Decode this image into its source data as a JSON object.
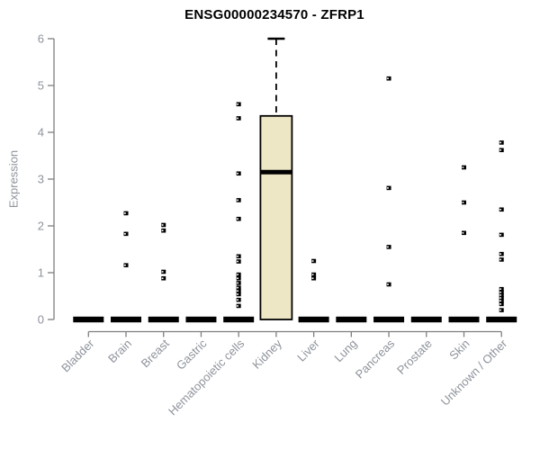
{
  "chart_data": {
    "type": "boxplot",
    "title": "ENSG00000234570 - ZFRP1",
    "ylabel": "Expression",
    "xlabel": "",
    "ylim": [
      0,
      6
    ],
    "yticks": [
      0,
      1,
      2,
      3,
      4,
      5,
      6
    ],
    "grid": false,
    "legend": "none",
    "categories": [
      "Bladder",
      "Brain",
      "Breast",
      "Gastric",
      "Hematopoietic cells",
      "Kidney",
      "Liver",
      "Lung",
      "Pancreas",
      "Prostate",
      "Skin",
      "Unknown / Other"
    ],
    "boxes": [
      {
        "category": "Bladder",
        "q1": 0,
        "median": 0,
        "q3": 0,
        "whisker_low": 0,
        "whisker_high": 0,
        "outliers": []
      },
      {
        "category": "Brain",
        "q1": 0,
        "median": 0,
        "q3": 0,
        "whisker_low": 0,
        "whisker_high": 0,
        "outliers": [
          2.27,
          1.83,
          1.16
        ]
      },
      {
        "category": "Breast",
        "q1": 0,
        "median": 0,
        "q3": 0,
        "whisker_low": 0,
        "whisker_high": 0,
        "outliers": [
          2.02,
          1.9,
          1.02,
          0.88
        ]
      },
      {
        "category": "Gastric",
        "q1": 0,
        "median": 0,
        "q3": 0,
        "whisker_low": 0,
        "whisker_high": 0,
        "outliers": []
      },
      {
        "category": "Hematopoietic cells",
        "q1": 0,
        "median": 0,
        "q3": 0,
        "whisker_low": 0,
        "whisker_high": 0,
        "outliers": [
          4.6,
          4.3,
          3.12,
          2.55,
          2.15,
          1.35,
          1.24,
          0.96,
          0.88,
          0.78,
          0.68,
          0.61,
          0.54,
          0.42,
          0.29
        ]
      },
      {
        "category": "Kidney",
        "q1": 0,
        "median": 3.15,
        "q3": 4.35,
        "whisker_low": 0,
        "whisker_high": 6.0,
        "outliers": []
      },
      {
        "category": "Liver",
        "q1": 0,
        "median": 0,
        "q3": 0,
        "whisker_low": 0,
        "whisker_high": 0,
        "outliers": [
          1.25,
          0.96,
          0.88
        ]
      },
      {
        "category": "Lung",
        "q1": 0,
        "median": 0,
        "q3": 0,
        "whisker_low": 0,
        "whisker_high": 0,
        "outliers": []
      },
      {
        "category": "Pancreas",
        "q1": 0,
        "median": 0,
        "q3": 0,
        "whisker_low": 0,
        "whisker_high": 0,
        "outliers": [
          5.15,
          2.81,
          1.55,
          0.75
        ]
      },
      {
        "category": "Prostate",
        "q1": 0,
        "median": 0,
        "q3": 0,
        "whisker_low": 0,
        "whisker_high": 0,
        "outliers": []
      },
      {
        "category": "Skin",
        "q1": 0,
        "median": 0,
        "q3": 0,
        "whisker_low": 0,
        "whisker_high": 0,
        "outliers": [
          3.25,
          2.5,
          1.85
        ]
      },
      {
        "category": "Unknown / Other",
        "q1": 0,
        "median": 0,
        "q3": 0,
        "whisker_low": 0,
        "whisker_high": 0,
        "outliers": [
          3.78,
          3.62,
          2.35,
          1.81,
          1.4,
          1.28,
          0.65,
          0.58,
          0.52,
          0.46,
          0.4,
          0.33,
          0.2
        ]
      }
    ],
    "marker_style": "black-square-with-white-center",
    "colors": {
      "box_fill": "#EDE7C5",
      "box_stroke": "#000000",
      "median": "#000000",
      "zero_bar": "#000000",
      "marker": "#000000",
      "axis_line": "#7f7f7f",
      "tick_text": "#8e939b",
      "title_text": "#000000",
      "background": "#ffffff"
    }
  }
}
